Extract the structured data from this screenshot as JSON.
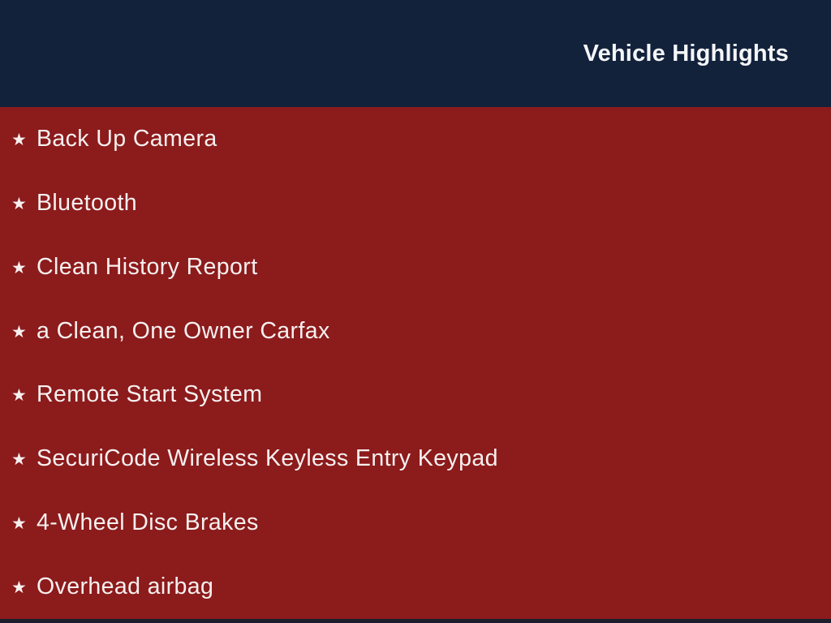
{
  "header": {
    "title": "Vehicle Highlights"
  },
  "list": {
    "bullet_glyph": "★",
    "items": [
      "Back Up Camera",
      "Bluetooth",
      "Clean History Report",
      "a Clean, One Owner Carfax",
      "Remote Start System",
      "SecuriCode Wireless Keyless Entry Keypad",
      "4-Wheel Disc Brakes",
      "Overhead airbag"
    ]
  },
  "colors": {
    "header_bg": "#13223B",
    "body_bg": "#8C1B1C",
    "text": "#F6F0EF",
    "title_text": "#F4F6FA",
    "bottom_bar": "#1B1F2B"
  }
}
